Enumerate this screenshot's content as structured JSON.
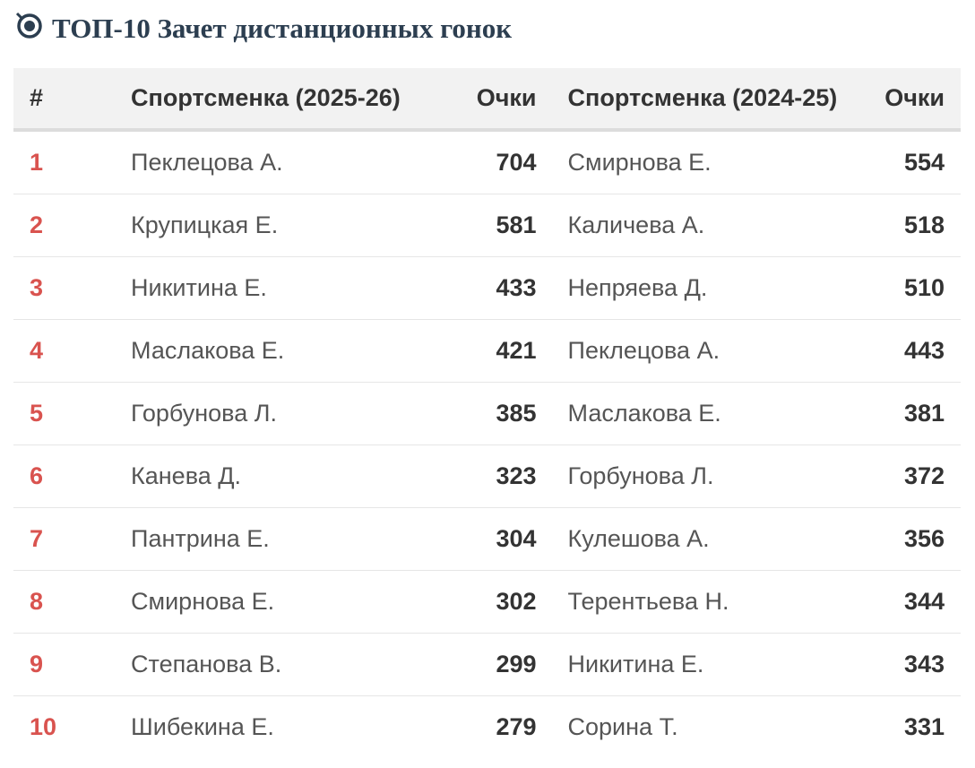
{
  "title": {
    "icon": "stopwatch-target-icon",
    "text": "ТОП-10 Зачет дистанционных гонок",
    "color": "#2c3e50"
  },
  "table": {
    "headers": [
      "#",
      "Спортсменка (2025-26)",
      "Очки",
      "Спортсменка (2024-25)",
      "Очки"
    ],
    "rows": [
      [
        "1",
        "Пеклецова А.",
        "704",
        "Смирнова Е.",
        "554"
      ],
      [
        "2",
        "Крупицкая Е.",
        "581",
        "Каличева А.",
        "518"
      ],
      [
        "3",
        "Никитина Е.",
        "433",
        "Непряева Д.",
        "510"
      ],
      [
        "4",
        "Маслакова Е.",
        "421",
        "Пеклецова А.",
        "443"
      ],
      [
        "5",
        "Горбунова Л.",
        "385",
        "Маслакова Е.",
        "381"
      ],
      [
        "6",
        "Канева Д.",
        "323",
        "Горбунова Л.",
        "372"
      ],
      [
        "7",
        "Пантрина Е.",
        "304",
        "Кулешова А.",
        "356"
      ],
      [
        "8",
        "Смирнова Е.",
        "302",
        "Терентьева Н.",
        "344"
      ],
      [
        "9",
        "Степанова В.",
        "299",
        "Никитина Е.",
        "343"
      ],
      [
        "10",
        "Шибекина Е.",
        "279",
        "Сорина Т.",
        "331"
      ]
    ],
    "rank_color": "#d9534f"
  }
}
